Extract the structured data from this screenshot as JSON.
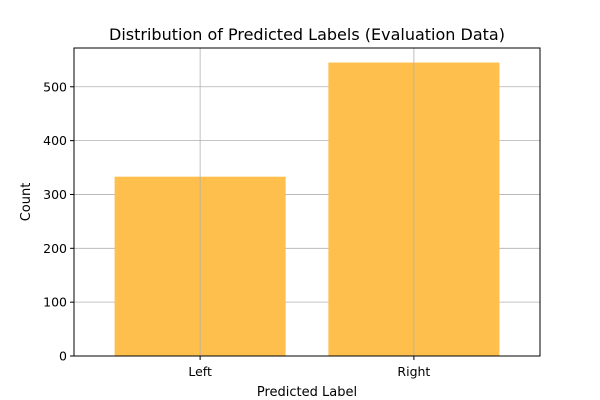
{
  "chart_data": {
    "type": "bar",
    "title": "Distribution of Predicted Labels (Evaluation Data)",
    "xlabel": "Predicted Label",
    "ylabel": "Count",
    "categories": [
      "Left",
      "Right"
    ],
    "values": [
      333,
      545
    ],
    "ylim": [
      0,
      572
    ],
    "yticks": [
      0,
      100,
      200,
      300,
      400,
      500
    ],
    "grid": true,
    "legend": "none",
    "colors": {
      "bar": "#ffbf4d",
      "grid": "#b0b0b0",
      "axis": "#000000"
    }
  }
}
